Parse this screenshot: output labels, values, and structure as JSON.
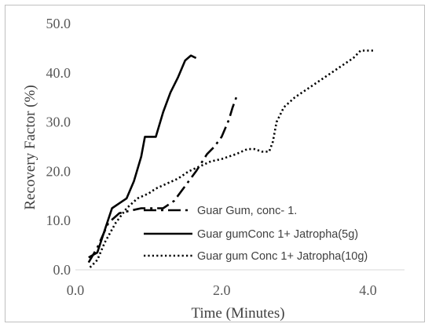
{
  "chart_data": {
    "type": "line",
    "title": "",
    "xlabel": "Time (Minutes)",
    "ylabel": "Recovery Factor (%)",
    "xlim": [
      0,
      4.5
    ],
    "ylim": [
      0,
      50
    ],
    "x_ticks": [
      "0.0",
      "2.0",
      "4.0"
    ],
    "y_ticks": [
      "0.0",
      "10.0",
      "20.0",
      "30.0",
      "40.0",
      "50.0"
    ],
    "x_tick_values": [
      0,
      2,
      4
    ],
    "y_tick_values": [
      0,
      10,
      20,
      30,
      40,
      50
    ],
    "grid": false,
    "legend_position": "bottom-right",
    "line_color": "#000000",
    "series": [
      {
        "name": "Guar Gum, conc- 1.",
        "style": "dash-dot",
        "x": [
          0.18,
          0.3,
          0.45,
          0.6,
          0.75,
          0.9,
          1.05,
          1.2,
          1.35,
          1.5,
          1.65,
          1.8,
          1.9,
          2.0,
          2.1,
          2.15,
          2.2
        ],
        "y": [
          1.5,
          4.5,
          9.5,
          11.5,
          12.0,
          12.5,
          12.5,
          12.5,
          14.0,
          17.0,
          20.0,
          23.5,
          25.0,
          27.0,
          30.5,
          33.0,
          35.0
        ]
      },
      {
        "name": "Guar gumConc 1+  Jatropha(5g)",
        "style": "solid",
        "x": [
          0.18,
          0.3,
          0.4,
          0.5,
          0.6,
          0.7,
          0.8,
          0.9,
          0.95,
          1.0,
          1.1,
          1.2,
          1.3,
          1.4,
          1.5,
          1.58,
          1.65
        ],
        "y": [
          2.5,
          3.5,
          8.0,
          12.5,
          13.5,
          14.5,
          18.0,
          23.0,
          27.0,
          27.0,
          27.0,
          32.0,
          36.0,
          39.0,
          42.5,
          43.5,
          43.0
        ]
      },
      {
        "name": "Guar gum Conc 1+  Jatropha(10g)",
        "style": "dotted",
        "x": [
          0.2,
          0.3,
          0.4,
          0.55,
          0.7,
          0.85,
          1.0,
          1.1,
          1.25,
          1.4,
          1.55,
          1.7,
          1.85,
          2.0,
          2.2,
          2.35,
          2.45,
          2.55,
          2.65,
          2.7,
          2.75,
          2.85,
          3.0,
          3.2,
          3.4,
          3.6,
          3.8,
          3.9,
          4.0,
          4.1
        ],
        "y": [
          0.5,
          2.0,
          5.5,
          9.5,
          12.5,
          14.5,
          15.5,
          16.5,
          17.5,
          18.5,
          20.0,
          21.0,
          22.0,
          22.5,
          23.5,
          24.5,
          24.5,
          24.0,
          24.0,
          26.0,
          30.0,
          33.0,
          35.0,
          37.0,
          39.0,
          41.0,
          43.0,
          44.5,
          44.5,
          44.5
        ]
      }
    ]
  }
}
